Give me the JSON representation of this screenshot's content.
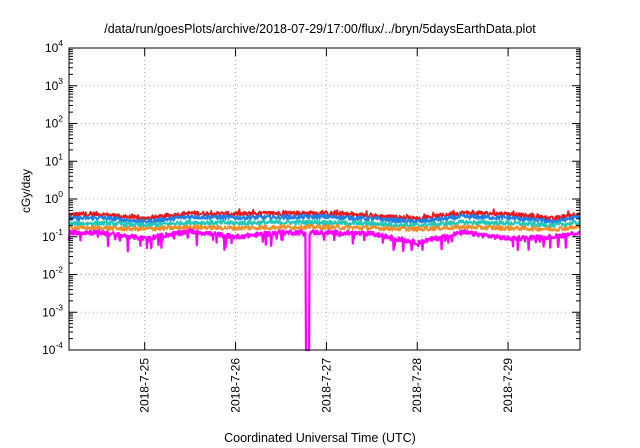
{
  "chart_data": {
    "type": "line",
    "title": "/data/run/goesPlots/archive/2018-07-29/17:00/flux/../bryn/5daysEarthData.plot",
    "xlabel": "Coordinated Universal Time (UTC)",
    "ylabel": "cGy/day",
    "yscale": "log",
    "ylim": [
      0.0001,
      10000
    ],
    "y_ticks": [
      {
        "base": "10",
        "exp": "-4",
        "value": 0.0001
      },
      {
        "base": "10",
        "exp": "-3",
        "value": 0.001
      },
      {
        "base": "10",
        "exp": "-2",
        "value": 0.01
      },
      {
        "base": "10",
        "exp": "-1",
        "value": 0.1
      },
      {
        "base": "10",
        "exp": "0",
        "value": 1
      },
      {
        "base": "10",
        "exp": "1",
        "value": 10
      },
      {
        "base": "10",
        "exp": "2",
        "value": 100
      },
      {
        "base": "10",
        "exp": "3",
        "value": 1000
      },
      {
        "base": "10",
        "exp": "4",
        "value": 10000
      }
    ],
    "xlim": [
      "2018-07-24T04:00",
      "2018-07-29T19:00"
    ],
    "x_ticks": [
      {
        "label": "2018-7-25",
        "value": "2018-07-25T00:00"
      },
      {
        "label": "2018-7-26",
        "value": "2018-07-26T00:00"
      },
      {
        "label": "2018-7-27",
        "value": "2018-07-27T00:00"
      },
      {
        "label": "2018-7-28",
        "value": "2018-07-28T00:00"
      },
      {
        "label": "2018-7-29",
        "value": "2018-07-29T00:00"
      }
    ],
    "grid": true,
    "legend": "none",
    "dropout": {
      "x": "2018-07-26T19:00",
      "y": 0.0001
    },
    "series": [
      {
        "color": "#e8181c",
        "x": [
          "2018-07-24T04:00",
          "2018-07-24T12:00",
          "2018-07-25T00:00",
          "2018-07-25T12:00",
          "2018-07-26T00:00",
          "2018-07-26T12:00",
          "2018-07-27T00:00",
          "2018-07-27T12:00",
          "2018-07-28T00:00",
          "2018-07-28T12:00",
          "2018-07-29T00:00",
          "2018-07-29T12:00",
          "2018-07-29T19:00"
        ],
        "values": [
          0.38,
          0.4,
          0.3,
          0.42,
          0.4,
          0.42,
          0.42,
          0.36,
          0.3,
          0.43,
          0.4,
          0.3,
          0.42
        ]
      },
      {
        "color": "#1e7fe6",
        "x": [
          "2018-07-24T04:00",
          "2018-07-24T12:00",
          "2018-07-25T00:00",
          "2018-07-25T12:00",
          "2018-07-26T00:00",
          "2018-07-26T12:00",
          "2018-07-27T00:00",
          "2018-07-27T12:00",
          "2018-07-28T00:00",
          "2018-07-28T12:00",
          "2018-07-29T00:00",
          "2018-07-29T12:00",
          "2018-07-29T19:00"
        ],
        "values": [
          0.3,
          0.32,
          0.25,
          0.34,
          0.32,
          0.33,
          0.34,
          0.3,
          0.25,
          0.34,
          0.32,
          0.25,
          0.34
        ]
      },
      {
        "color": "#22c7b8",
        "x": [
          "2018-07-24T04:00",
          "2018-07-24T12:00",
          "2018-07-25T00:00",
          "2018-07-25T12:00",
          "2018-07-26T00:00",
          "2018-07-26T12:00",
          "2018-07-27T00:00",
          "2018-07-27T12:00",
          "2018-07-28T00:00",
          "2018-07-28T12:00",
          "2018-07-29T00:00",
          "2018-07-29T12:00",
          "2018-07-29T19:00"
        ],
        "values": [
          0.22,
          0.23,
          0.2,
          0.24,
          0.23,
          0.24,
          0.24,
          0.22,
          0.2,
          0.24,
          0.23,
          0.2,
          0.24
        ]
      },
      {
        "color": "#f08c2a",
        "x": [
          "2018-07-24T04:00",
          "2018-07-24T12:00",
          "2018-07-25T00:00",
          "2018-07-25T12:00",
          "2018-07-26T00:00",
          "2018-07-26T12:00",
          "2018-07-27T00:00",
          "2018-07-27T12:00",
          "2018-07-28T00:00",
          "2018-07-28T12:00",
          "2018-07-29T00:00",
          "2018-07-29T12:00",
          "2018-07-29T19:00"
        ],
        "values": [
          0.17,
          0.17,
          0.16,
          0.18,
          0.17,
          0.18,
          0.18,
          0.17,
          0.16,
          0.18,
          0.17,
          0.16,
          0.18
        ]
      },
      {
        "color": "#ff00ff",
        "x": [
          "2018-07-24T04:00",
          "2018-07-24T12:00",
          "2018-07-25T00:00",
          "2018-07-25T12:00",
          "2018-07-26T00:00",
          "2018-07-26T12:00",
          "2018-07-27T00:00",
          "2018-07-27T12:00",
          "2018-07-28T00:00",
          "2018-07-28T12:00",
          "2018-07-29T00:00",
          "2018-07-29T12:00",
          "2018-07-29T19:00"
        ],
        "values": [
          0.13,
          0.13,
          0.09,
          0.14,
          0.1,
          0.13,
          0.13,
          0.12,
          0.07,
          0.13,
          0.09,
          0.1,
          0.13
        ]
      }
    ]
  }
}
